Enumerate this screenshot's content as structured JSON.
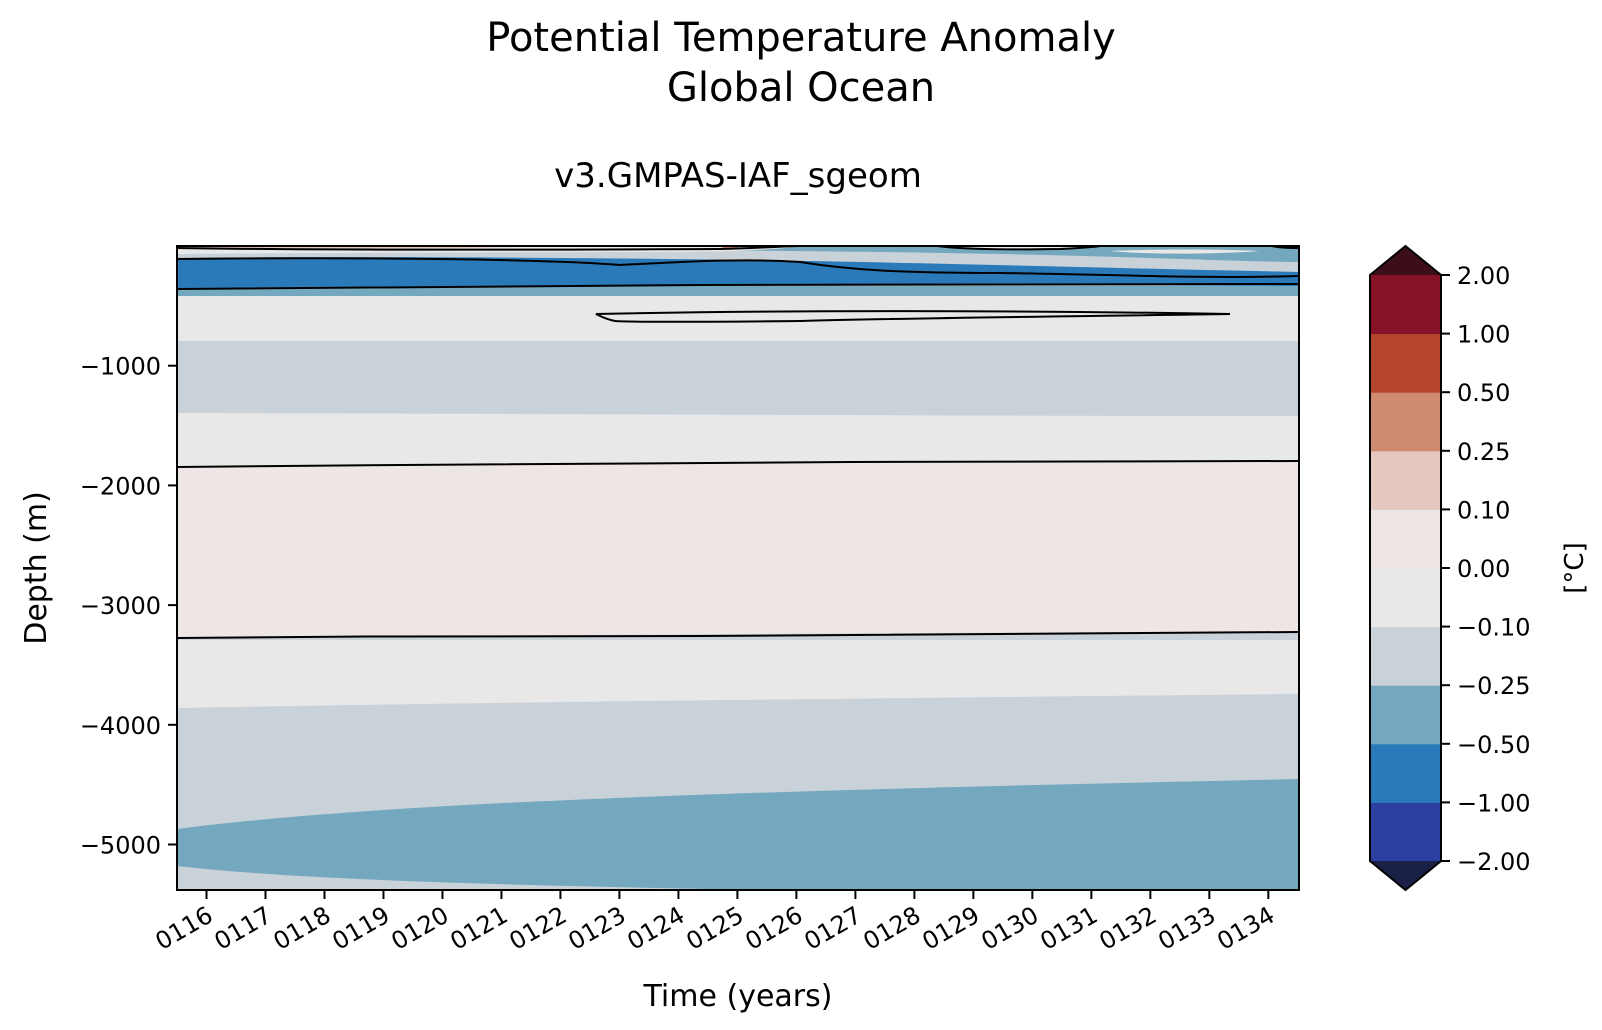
{
  "figure": {
    "title_line1": "Potential Temperature Anomaly",
    "title_line2": "Global Ocean"
  },
  "chart_data": {
    "type": "contourf",
    "title": "v3.GMPAS-IAF_sgeom",
    "xlabel": "Time (years)",
    "ylabel": "Depth (m)",
    "x_ticks": [
      "0116",
      "0117",
      "0118",
      "0119",
      "0120",
      "0121",
      "0122",
      "0123",
      "0124",
      "0125",
      "0126",
      "0127",
      "0128",
      "0129",
      "0130",
      "0131",
      "0132",
      "0133",
      "0134"
    ],
    "x_range": [
      115.5,
      134.52
    ],
    "y_ticks": [
      -1000,
      -2000,
      -3000,
      -4000,
      -5000
    ],
    "y_tick_labels": [
      "−1000",
      "−2000",
      "−3000",
      "−4000",
      "−5000"
    ],
    "y_range": [
      -5380,
      0
    ],
    "colorbar": {
      "label": "[°C]",
      "levels": [
        -2.0,
        -1.0,
        -0.5,
        -0.25,
        -0.1,
        0.0,
        0.1,
        0.25,
        0.5,
        1.0,
        2.0
      ],
      "level_labels": [
        "−2.00",
        "−1.00",
        "−0.50",
        "−0.25",
        "−0.10",
        "0.00",
        "0.10",
        "0.25",
        "0.50",
        "1.00",
        "2.00"
      ],
      "colors": [
        "#2a3fa0",
        "#2a7ab9",
        "#74a8bf",
        "#c9d2d9",
        "#e8e8e9",
        "#eee6e5",
        "#e4c7bf",
        "#cf8b70",
        "#b7452e",
        "#861228"
      ],
      "under_color": "#1a1f46",
      "over_color": "#3c0e1a",
      "extend": "both"
    },
    "contour_lines_at": [
      -1.0,
      0.0
    ],
    "layers": [
      {
        "depth_top_start": -4850,
        "depth_top_end": -4430,
        "value_band": "-0.50 to -0.25"
      },
      {
        "depth_top_start": -3880,
        "depth_top_end": -3730,
        "value_band": "-0.25 to -0.10"
      },
      {
        "depth_top_start": -3270,
        "depth_top_end": -3220,
        "value_band": "-0.10 to 0.00"
      },
      {
        "depth_top_start": -1850,
        "depth_top_end": -1800,
        "value_band": "0.00 to 0.10"
      },
      {
        "depth_top_start": -1420,
        "depth_top_end": -1440,
        "value_band": "-0.10 to 0.00"
      },
      {
        "depth_top_start": -810,
        "depth_top_end": -810,
        "value_band": "-0.25 to -0.10"
      },
      {
        "depth_top_start": -400,
        "depth_top_end": -400,
        "value_band": "-0.10 to 0.00"
      },
      {
        "depth_top_start": -350,
        "depth_top_end": -350,
        "value_band": "-0.50 to -0.25"
      },
      {
        "depth_top_start": -280,
        "depth_top_end": -340,
        "value_band": "-1.00 to -0.50"
      },
      {
        "depth_top_start": -110,
        "depth_top_end": -120,
        "value_band": "-0.10 to 0.00"
      }
    ]
  }
}
